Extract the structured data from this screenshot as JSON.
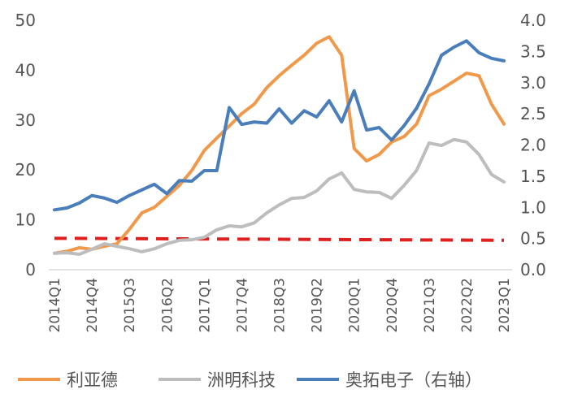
{
  "chart_data": {
    "type": "line",
    "categories": [
      "2014Q1",
      "2014Q2",
      "2014Q3",
      "2014Q4",
      "2015Q1",
      "2015Q2",
      "2015Q3",
      "2015Q4",
      "2016Q1",
      "2016Q2",
      "2016Q3",
      "2016Q4",
      "2017Q1",
      "2017Q2",
      "2017Q3",
      "2017Q4",
      "2018Q1",
      "2018Q2",
      "2018Q3",
      "2018Q4",
      "2019Q1",
      "2019Q2",
      "2019Q3",
      "2019Q4",
      "2020Q1",
      "2020Q2",
      "2020Q3",
      "2020Q4",
      "2021Q1",
      "2021Q2",
      "2021Q3",
      "2021Q4",
      "2022Q1",
      "2022Q2",
      "2022Q3",
      "2022Q4",
      "2023Q1"
    ],
    "tick_labels": [
      "2014Q1",
      "2014Q4",
      "2015Q3",
      "2016Q2",
      "2017Q1",
      "2017Q4",
      "2018Q3",
      "2019Q2",
      "2020Q1",
      "2020Q4",
      "2021Q3",
      "2022Q2",
      "2023Q1"
    ],
    "y_left": {
      "ylim": [
        0,
        50
      ],
      "ticks": [
        "0",
        "10",
        "20",
        "30",
        "40",
        "50"
      ]
    },
    "y_right": {
      "ylim": [
        0,
        4.0
      ],
      "ticks": [
        "0.0",
        "0.5",
        "1.0",
        "1.5",
        "2.0",
        "2.5",
        "3.0",
        "3.5",
        "4.0"
      ]
    },
    "grid": false,
    "legend_position": "bottom",
    "series": [
      {
        "name": "利亚德",
        "axis": "left",
        "color": "#F0994A",
        "values": [
          3.3,
          3.7,
          4.4,
          4.1,
          4.7,
          5.2,
          8.1,
          11.4,
          12.5,
          14.7,
          16.9,
          19.9,
          23.9,
          26.4,
          28.8,
          31.3,
          33.2,
          36.5,
          38.9,
          41,
          43,
          45.4,
          46.7,
          43,
          24.3,
          21.8,
          23.1,
          25.6,
          26.7,
          29.2,
          34.9,
          36.2,
          37.8,
          39.4,
          38.9,
          33.2,
          29.2
        ]
      },
      {
        "name": "洲明科技",
        "axis": "left",
        "color": "#BDBDBD",
        "values": [
          3.3,
          3.4,
          3.1,
          4.1,
          5.2,
          4.7,
          4.2,
          3.6,
          4.2,
          5.2,
          5.9,
          6,
          6.5,
          8,
          8.8,
          8.6,
          9.4,
          11.4,
          13,
          14.3,
          14.5,
          15.8,
          18.2,
          19.4,
          16.1,
          15.6,
          15.5,
          14.3,
          16.9,
          19.9,
          25.4,
          24.9,
          26.1,
          25.6,
          23.1,
          19.1,
          17.6
        ]
      },
      {
        "name": "奥拓电子（右轴）",
        "axis": "right",
        "color": "#4A7EBB",
        "values": [
          0.96,
          0.99,
          1.07,
          1.19,
          1.15,
          1.08,
          1.19,
          1.28,
          1.37,
          1.22,
          1.43,
          1.42,
          1.59,
          1.59,
          2.6,
          2.33,
          2.37,
          2.35,
          2.58,
          2.35,
          2.55,
          2.45,
          2.71,
          2.37,
          2.87,
          2.24,
          2.28,
          2.08,
          2.31,
          2.59,
          2.98,
          3.44,
          3.57,
          3.67,
          3.48,
          3.39,
          3.35
        ]
      }
    ],
    "reference_line": {
      "axis": "left",
      "color": "#E0201E",
      "style": "dashed",
      "values_start_end": [
        6.3,
        5.9
      ]
    }
  }
}
